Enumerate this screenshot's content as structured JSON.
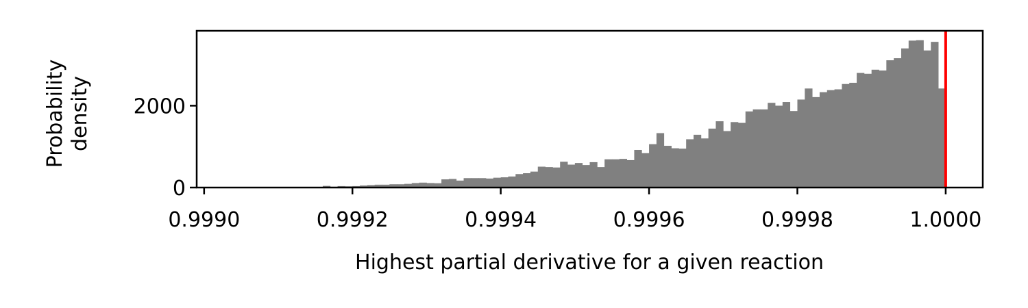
{
  "chart_data": {
    "type": "bar",
    "title": "",
    "xlabel": "Highest partial derivative for a given reaction",
    "ylabel": [
      "Probability",
      "density"
    ],
    "xlim": [
      0.99899,
      1.00005
    ],
    "ylim": [
      0,
      3830
    ],
    "x_ticks": [
      {
        "value": 0.999,
        "label": "0.9990"
      },
      {
        "value": 0.9992,
        "label": "0.9992"
      },
      {
        "value": 0.9994,
        "label": "0.9994"
      },
      {
        "value": 0.9996,
        "label": "0.9996"
      },
      {
        "value": 0.9998,
        "label": "0.9998"
      },
      {
        "value": 1.0,
        "label": "1.0000"
      }
    ],
    "y_ticks": [
      {
        "value": 0,
        "label": "0"
      },
      {
        "value": 2000,
        "label": "2000"
      }
    ],
    "bin_start": 0.999,
    "bin_width": 1e-05,
    "values": [
      5,
      5,
      5,
      5,
      5,
      15,
      5,
      5,
      5,
      5,
      5,
      5,
      10,
      5,
      5,
      5,
      40,
      20,
      35,
      30,
      35,
      50,
      60,
      70,
      70,
      80,
      80,
      90,
      110,
      120,
      110,
      105,
      200,
      210,
      170,
      230,
      230,
      230,
      220,
      240,
      250,
      270,
      330,
      350,
      390,
      510,
      500,
      490,
      630,
      560,
      600,
      550,
      620,
      500,
      690,
      690,
      700,
      670,
      920,
      840,
      1060,
      1330,
      1020,
      960,
      950,
      1180,
      1290,
      1200,
      1440,
      1620,
      1380,
      1600,
      1580,
      1860,
      1910,
      1910,
      2070,
      2000,
      2090,
      1870,
      2150,
      2420,
      2210,
      2330,
      2380,
      2400,
      2530,
      2560,
      2800,
      2780,
      2880,
      2860,
      3110,
      3160,
      3400,
      3590,
      3600,
      3350,
      3560,
      2420
    ],
    "bar_color": "#808080",
    "reference_line": {
      "x": 1.0,
      "color": "#ff0000"
    },
    "grid": false,
    "legend": false
  }
}
